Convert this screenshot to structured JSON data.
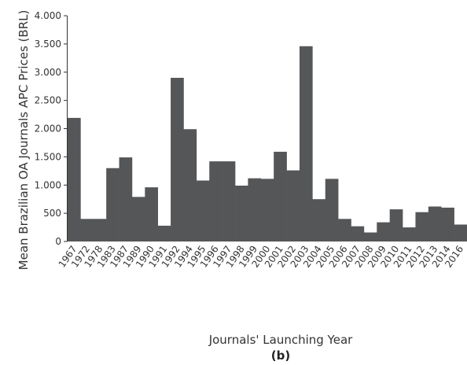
{
  "chart_data": {
    "type": "bar",
    "title": "",
    "xlabel": "Journals' Launching Year",
    "ylabel": "Mean Brazilian OA Journals APC Prices (BRL)",
    "panel_label": "(b)",
    "ylim": [
      0,
      4000
    ],
    "yticks": [
      0,
      500,
      1000,
      1500,
      2000,
      2500,
      3000,
      3500,
      4000
    ],
    "ytick_labels": [
      "0",
      "500",
      "1.000",
      "1.500",
      "2.000",
      "2.500",
      "3.000",
      "3.500",
      "4.000"
    ],
    "grid": false,
    "bar_color": "#555658",
    "categories": [
      "1967",
      "1972",
      "1978",
      "1983",
      "1987",
      "1989",
      "1990",
      "1991",
      "1992",
      "1994",
      "1995",
      "1996",
      "1997",
      "1998",
      "1999",
      "2000",
      "2001",
      "2002",
      "2003",
      "2004",
      "2005",
      "2006",
      "2007",
      "2008",
      "2009",
      "2010",
      "2011",
      "2012",
      "2013",
      "2014",
      "2016"
    ],
    "values": [
      2190,
      400,
      400,
      1300,
      1490,
      790,
      960,
      280,
      2900,
      1990,
      1080,
      1420,
      1420,
      990,
      1120,
      1110,
      1590,
      1260,
      3460,
      750,
      1110,
      400,
      270,
      160,
      340,
      570,
      250,
      520,
      620,
      600,
      300
    ]
  }
}
